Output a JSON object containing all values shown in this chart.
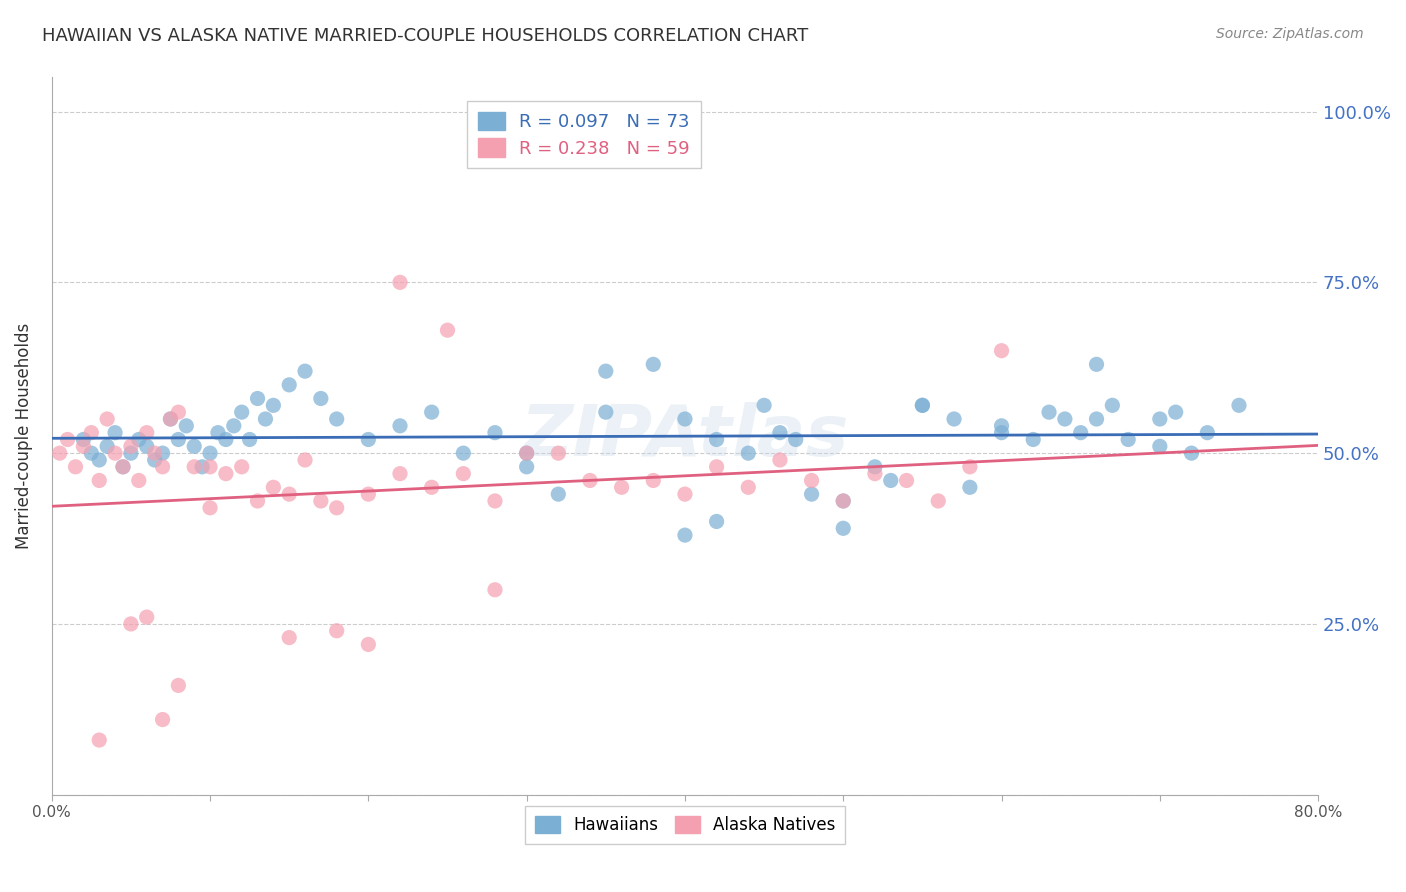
{
  "title": "HAWAIIAN VS ALASKA NATIVE MARRIED-COUPLE HOUSEHOLDS CORRELATION CHART",
  "source": "Source: ZipAtlas.com",
  "xlabel_bottom": "",
  "ylabel": "Married-couple Households",
  "x_label_bottom_left": "0.0%",
  "x_label_bottom_right": "80.0%",
  "y_ticks": [
    0.0,
    0.25,
    0.5,
    0.75,
    1.0
  ],
  "y_tick_labels": [
    "",
    "25.0%",
    "50.0%",
    "75.0%",
    "100.0%"
  ],
  "x_min": 0.0,
  "x_max": 0.8,
  "y_min": 0.0,
  "y_max": 1.05,
  "hawaiians_R": 0.097,
  "hawaiians_N": 73,
  "alaska_R": 0.238,
  "alaska_N": 59,
  "blue_color": "#7bafd4",
  "pink_color": "#f4a0b0",
  "blue_line_color": "#3a6db5",
  "pink_line_color": "#e06080",
  "legend_label_blue": "Hawaiians",
  "legend_label_pink": "Alaska Natives",
  "watermark": "ZIPAtlas",
  "hawaiians_x": [
    0.02,
    0.025,
    0.03,
    0.035,
    0.04,
    0.045,
    0.05,
    0.055,
    0.06,
    0.065,
    0.07,
    0.075,
    0.08,
    0.085,
    0.09,
    0.095,
    0.1,
    0.105,
    0.11,
    0.115,
    0.12,
    0.125,
    0.13,
    0.135,
    0.14,
    0.15,
    0.16,
    0.17,
    0.18,
    0.2,
    0.22,
    0.24,
    0.26,
    0.28,
    0.3,
    0.32,
    0.35,
    0.38,
    0.4,
    0.42,
    0.44,
    0.46,
    0.48,
    0.5,
    0.52,
    0.55,
    0.58,
    0.6,
    0.62,
    0.64,
    0.65,
    0.66,
    0.67,
    0.68,
    0.7,
    0.71,
    0.72,
    0.73,
    0.3,
    0.35,
    0.4,
    0.42,
    0.45,
    0.47,
    0.5,
    0.53,
    0.55,
    0.57,
    0.6,
    0.63,
    0.66,
    0.7,
    0.75
  ],
  "hawaiians_y": [
    0.52,
    0.5,
    0.49,
    0.51,
    0.53,
    0.48,
    0.5,
    0.52,
    0.51,
    0.49,
    0.5,
    0.55,
    0.52,
    0.54,
    0.51,
    0.48,
    0.5,
    0.53,
    0.52,
    0.54,
    0.56,
    0.52,
    0.58,
    0.55,
    0.57,
    0.6,
    0.62,
    0.58,
    0.55,
    0.52,
    0.54,
    0.56,
    0.5,
    0.53,
    0.48,
    0.44,
    0.62,
    0.63,
    0.55,
    0.52,
    0.5,
    0.53,
    0.44,
    0.43,
    0.48,
    0.57,
    0.45,
    0.54,
    0.52,
    0.55,
    0.53,
    0.55,
    0.57,
    0.52,
    0.51,
    0.56,
    0.5,
    0.53,
    0.5,
    0.56,
    0.38,
    0.4,
    0.57,
    0.52,
    0.39,
    0.46,
    0.57,
    0.55,
    0.53,
    0.56,
    0.63,
    0.55,
    0.57
  ],
  "alaska_x": [
    0.005,
    0.01,
    0.015,
    0.02,
    0.025,
    0.03,
    0.035,
    0.04,
    0.045,
    0.05,
    0.055,
    0.06,
    0.065,
    0.07,
    0.075,
    0.08,
    0.09,
    0.1,
    0.11,
    0.12,
    0.13,
    0.14,
    0.15,
    0.16,
    0.17,
    0.18,
    0.2,
    0.22,
    0.24,
    0.26,
    0.28,
    0.3,
    0.32,
    0.34,
    0.36,
    0.38,
    0.4,
    0.42,
    0.44,
    0.46,
    0.48,
    0.5,
    0.52,
    0.54,
    0.56,
    0.58,
    0.6,
    0.22,
    0.25,
    0.28,
    0.15,
    0.18,
    0.2,
    0.1,
    0.08,
    0.07,
    0.06,
    0.05,
    0.03
  ],
  "alaska_y": [
    0.5,
    0.52,
    0.48,
    0.51,
    0.53,
    0.46,
    0.55,
    0.5,
    0.48,
    0.51,
    0.46,
    0.53,
    0.5,
    0.48,
    0.55,
    0.56,
    0.48,
    0.42,
    0.47,
    0.48,
    0.43,
    0.45,
    0.44,
    0.49,
    0.43,
    0.42,
    0.44,
    0.47,
    0.45,
    0.47,
    0.43,
    0.5,
    0.5,
    0.46,
    0.45,
    0.46,
    0.44,
    0.48,
    0.45,
    0.49,
    0.46,
    0.43,
    0.47,
    0.46,
    0.43,
    0.48,
    0.65,
    0.75,
    0.68,
    0.3,
    0.23,
    0.24,
    0.22,
    0.48,
    0.16,
    0.11,
    0.26,
    0.25,
    0.08
  ]
}
